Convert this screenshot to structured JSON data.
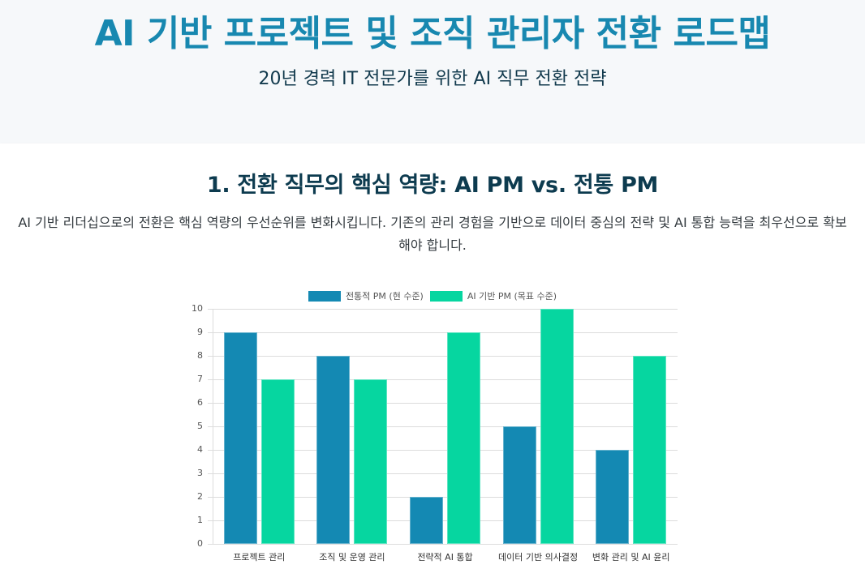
{
  "header": {
    "title": "AI 기반 프로젝트 및 조직 관리자 전환 로드맵",
    "subtitle": "20년 경력 IT 전문가를 위한 AI 직무 전환 전략"
  },
  "section": {
    "title": "1. 전환 직무의 핵심 역량: AI PM vs. 전통 PM",
    "description": "AI 기반 리더십으로의 전환은 핵심 역량의 우선순위를 변화시킵니다. 기존의 관리 경험을 기반으로 데이터 중심의 전략 및 AI 통합 능력을 최우선으로 확보해야 합니다."
  },
  "colors": {
    "title": "#1888b0",
    "traditional": "#1489b3",
    "ai": "#06d6a0"
  },
  "chart_data": {
    "type": "bar",
    "title": "",
    "xlabel": "",
    "ylabel": "",
    "ylim": [
      0,
      10
    ],
    "yticks": [
      "0",
      "1",
      "2",
      "3",
      "4",
      "5",
      "6",
      "7",
      "8",
      "9",
      "10"
    ],
    "grid": true,
    "legend_position": "top",
    "categories": [
      "프로젝트 관리",
      "조직 및 운영 관리",
      "전략적 AI 통합",
      "데이터 기반 의사결정",
      "변화 관리 및 AI 윤리"
    ],
    "series": [
      {
        "name": "전통적 PM (현 수준)",
        "color": "#1489b3",
        "values": [
          9,
          8,
          2,
          5,
          4
        ]
      },
      {
        "name": "AI 기반 PM (목표 수준)",
        "color": "#06d6a0",
        "values": [
          7,
          7,
          9,
          10,
          8
        ]
      }
    ]
  }
}
